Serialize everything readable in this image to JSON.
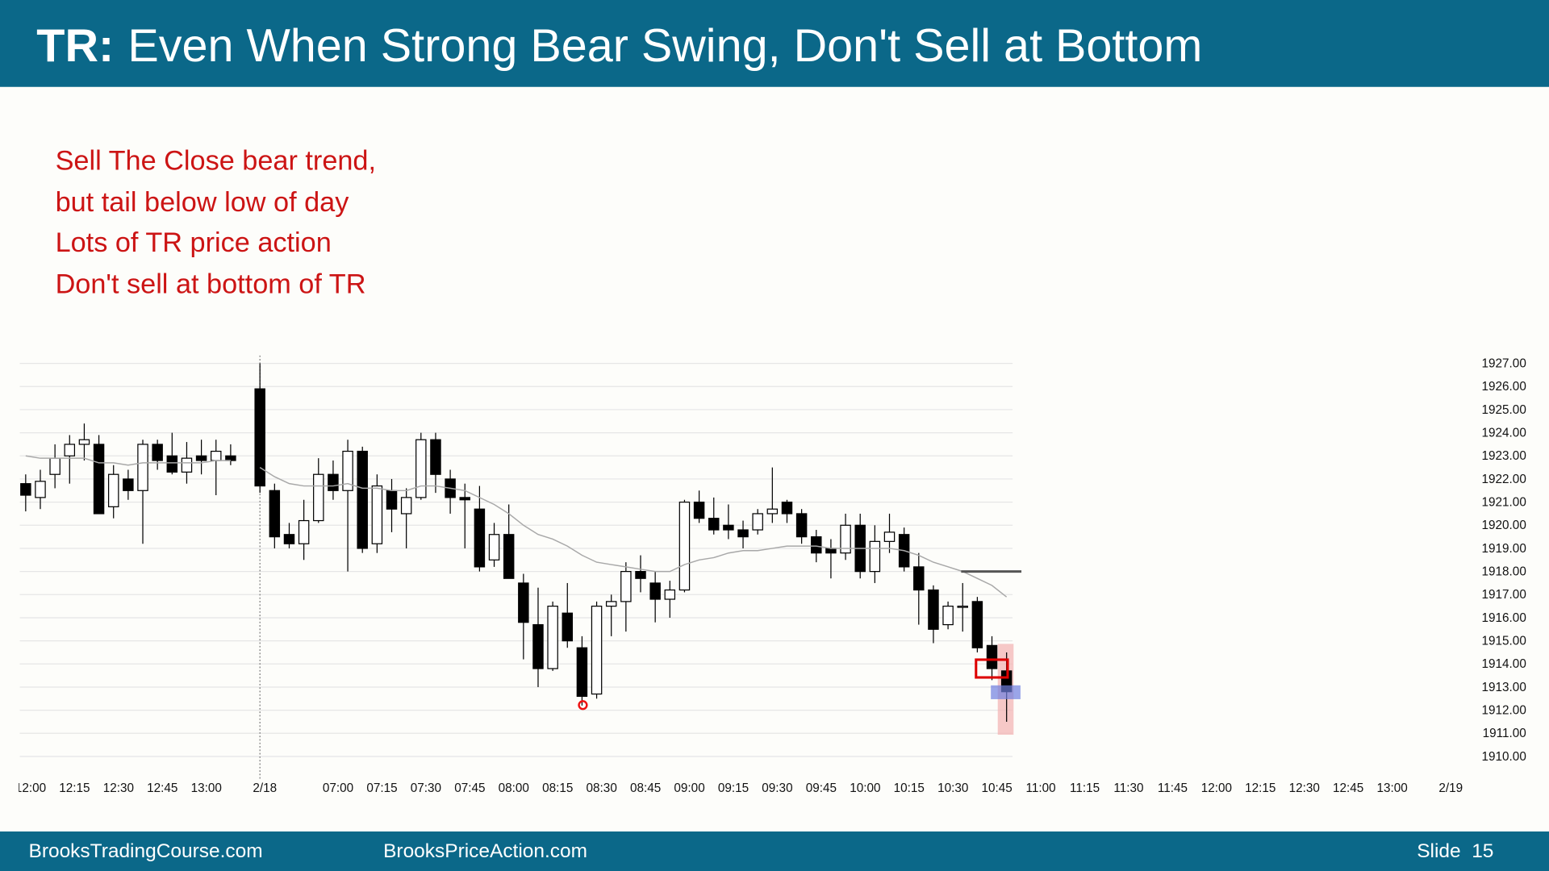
{
  "header": {
    "prefix": "TR:",
    "title": "Even When Strong Bear Swing, Don't Sell at Bottom"
  },
  "notes": [
    "Sell The Close bear trend,",
    "but tail below low of day",
    "Lots of TR price action",
    "Don't sell at bottom of TR"
  ],
  "footer": {
    "left": "BrooksTradingCourse.com",
    "middle": "BrooksPriceAction.com",
    "slide": "Slide  15"
  },
  "chart_data": {
    "type": "candlestick",
    "up_color": "#ffffff",
    "down_color": "#000000",
    "ema_color": "#a8a8a8",
    "hline_color": "#555555",
    "categories": [
      "12:00",
      null,
      null,
      "12:15",
      null,
      null,
      "12:30",
      null,
      null,
      "12:45",
      null,
      null,
      "13:00",
      null,
      null,
      null,
      "2/18",
      null,
      null,
      null,
      null,
      "07:00",
      null,
      null,
      "07:15",
      null,
      null,
      "07:30",
      null,
      null,
      "07:45",
      null,
      null,
      "08:00",
      null,
      null,
      "08:15",
      null,
      null,
      "08:30",
      null,
      null,
      "08:45",
      null,
      null,
      "09:00",
      null,
      null,
      "09:15",
      null,
      null,
      "09:30",
      null,
      null,
      "09:45",
      null,
      null,
      "10:00",
      null,
      null,
      "10:15",
      null,
      null,
      "10:30",
      null,
      null,
      "10:45",
      null,
      null,
      "11:00",
      null,
      null,
      "11:15",
      null,
      null,
      "11:30",
      null,
      null,
      "11:45",
      null,
      null,
      "12:00",
      null,
      null,
      "12:15",
      null,
      null,
      "12:30",
      null,
      null,
      "12:45",
      null,
      null,
      "13:00",
      null,
      null,
      null,
      "2/19"
    ],
    "open": [
      1921.8,
      1921.2,
      1922.2,
      1923.0,
      1923.5,
      1923.5,
      1920.8,
      1922.0,
      1921.5,
      1923.5,
      1923.0,
      1922.3,
      1923.0,
      1922.8,
      1923.0,
      null,
      1925.9,
      1921.5,
      1919.6,
      1919.2,
      1920.2,
      1922.2,
      1921.5,
      1923.2,
      1919.2,
      1921.5,
      1920.5,
      1921.2,
      1923.7,
      1922.0,
      1921.2,
      1920.7,
      1918.5,
      1919.6,
      1917.5,
      1915.7,
      1913.8,
      1916.2,
      1914.7,
      1912.7,
      1916.5,
      1916.7,
      1918.0,
      1917.5,
      1916.8,
      1917.2,
      1921.0,
      1920.3,
      1920.0,
      1919.8,
      1919.8,
      1920.5,
      1921.0,
      1920.5,
      1919.5,
      1919.0,
      1918.8,
      1920.0,
      1918.0,
      1919.3,
      1919.6,
      1918.2,
      1917.2,
      1915.7,
      1916.5,
      1916.7,
      1914.8,
      1913.7,
      null,
      null,
      null,
      null,
      null,
      null,
      null,
      null,
      null,
      null,
      null,
      null,
      null,
      null,
      null,
      null,
      null,
      null,
      null,
      null,
      null,
      null,
      null,
      null,
      null,
      null,
      null,
      null,
      null,
      null
    ],
    "high": [
      1922.2,
      1922.4,
      1923.5,
      1923.9,
      1924.4,
      1923.9,
      1922.6,
      1922.4,
      1923.7,
      1923.7,
      1924.0,
      1923.6,
      1923.7,
      1923.7,
      1923.5,
      null,
      1927.0,
      1921.8,
      1920.1,
      1921.1,
      1922.9,
      1922.8,
      1923.7,
      1923.4,
      1922.2,
      1922.0,
      1921.6,
      1924.0,
      1924.0,
      1922.4,
      1921.8,
      1921.7,
      1920.1,
      1920.9,
      1917.9,
      1917.3,
      1916.7,
      1917.5,
      1915.2,
      1916.7,
      1917.0,
      1918.4,
      1918.7,
      1918.0,
      1917.6,
      1921.1,
      1921.5,
      1921.2,
      1920.9,
      1920.2,
      1920.7,
      1922.5,
      1921.1,
      1920.7,
      1919.8,
      1919.4,
      1920.5,
      1920.5,
      1920.0,
      1920.5,
      1919.9,
      1918.8,
      1917.4,
      1916.7,
      1917.5,
      1916.9,
      1915.2,
      1914.5,
      null,
      null,
      null,
      null,
      null,
      null,
      null,
      null,
      null,
      null,
      null,
      null,
      null,
      null,
      null,
      null,
      null,
      null,
      null,
      null,
      null,
      null,
      null,
      null,
      null,
      null,
      null,
      null,
      null,
      null
    ],
    "low": [
      1920.6,
      1920.7,
      1921.6,
      1921.8,
      1922.8,
      1920.5,
      1920.3,
      1921.1,
      1919.2,
      1922.4,
      1922.2,
      1921.8,
      1922.2,
      1921.3,
      1922.6,
      null,
      1921.4,
      1919.0,
      1919.0,
      1918.5,
      1920.1,
      1921.1,
      1918.0,
      1918.8,
      1918.8,
      1919.7,
      1919.0,
      1921.1,
      1921.4,
      1920.5,
      1919.0,
      1918.0,
      1918.2,
      1917.7,
      1914.2,
      1913.0,
      1913.7,
      1914.7,
      1912.2,
      1912.5,
      1915.2,
      1915.4,
      1917.1,
      1915.8,
      1916.0,
      1917.1,
      1920.1,
      1919.6,
      1919.4,
      1919.0,
      1919.6,
      1920.1,
      1920.1,
      1919.2,
      1918.4,
      1917.7,
      1918.5,
      1917.7,
      1917.5,
      1918.8,
      1918.0,
      1915.7,
      1914.9,
      1915.5,
      1915.4,
      1914.5,
      1913.3,
      1911.5,
      null,
      null,
      null,
      null,
      null,
      null,
      null,
      null,
      null,
      null,
      null,
      null,
      null,
      null,
      null,
      null,
      null,
      null,
      null,
      null,
      null,
      null,
      null,
      null,
      null,
      null,
      null,
      null,
      null,
      null
    ],
    "close": [
      1921.3,
      1921.9,
      1922.9,
      1923.5,
      1923.7,
      1920.5,
      1922.2,
      1921.5,
      1923.5,
      1922.8,
      1922.3,
      1922.9,
      1922.8,
      1923.2,
      1922.8,
      null,
      1921.7,
      1919.5,
      1919.2,
      1920.2,
      1922.2,
      1921.5,
      1923.2,
      1919.0,
      1921.7,
      1920.7,
      1921.2,
      1923.7,
      1922.2,
      1921.2,
      1921.1,
      1918.2,
      1919.6,
      1917.7,
      1915.8,
      1913.8,
      1916.5,
      1915.0,
      1912.6,
      1916.5,
      1916.7,
      1918.0,
      1917.7,
      1916.8,
      1917.2,
      1921.0,
      1920.3,
      1919.8,
      1919.8,
      1919.5,
      1920.5,
      1920.7,
      1920.5,
      1919.5,
      1918.8,
      1918.8,
      1920.0,
      1918.0,
      1919.3,
      1919.7,
      1918.2,
      1917.2,
      1915.5,
      1916.5,
      1916.5,
      1914.7,
      1913.8,
      1912.8,
      null,
      null,
      null,
      null,
      null,
      null,
      null,
      null,
      null,
      null,
      null,
      null,
      null,
      null,
      null,
      null,
      null,
      null,
      null,
      null,
      null,
      null,
      null,
      null,
      null,
      null,
      null,
      null,
      null,
      null
    ],
    "ema": [
      1923.0,
      1922.9,
      1922.9,
      1922.9,
      1922.9,
      1922.7,
      1922.7,
      1922.6,
      1922.7,
      1922.7,
      1922.7,
      1922.7,
      1922.7,
      1922.8,
      1922.8,
      null,
      1922.5,
      1922.1,
      1921.8,
      1921.7,
      1921.7,
      1921.7,
      1921.8,
      1921.6,
      1921.6,
      1921.5,
      1921.5,
      1921.7,
      1921.7,
      1921.6,
      1921.5,
      1921.2,
      1920.9,
      1920.5,
      1920.0,
      1919.6,
      1919.4,
      1919.1,
      1918.7,
      1918.4,
      1918.3,
      1918.2,
      1918.1,
      1918.0,
      1918.0,
      1918.3,
      1918.5,
      1918.6,
      1918.8,
      1918.9,
      1918.9,
      1919.0,
      1919.1,
      1919.1,
      1919.1,
      1919.0,
      1919.0,
      1919.0,
      1919.0,
      1919.0,
      1918.9,
      1918.7,
      1918.4,
      1918.2,
      1918.0,
      1917.7,
      1917.4,
      1916.9,
      null,
      null,
      null,
      null,
      null,
      null,
      null,
      null,
      null,
      null,
      null,
      null,
      null,
      null,
      null,
      null,
      null,
      null,
      null,
      null,
      null,
      null,
      null,
      null,
      null,
      null,
      null,
      null,
      null,
      null
    ],
    "hline": 1918,
    "ylim": [
      1910,
      1927
    ],
    "yticks": [
      {
        "value": 1910,
        "label": "1910.00"
      },
      {
        "value": 1911,
        "label": "1911.00"
      },
      {
        "value": 1912,
        "label": "1912.00"
      },
      {
        "value": 1913,
        "label": "1913.00"
      },
      {
        "value": 1914,
        "label": "1914.00"
      },
      {
        "value": 1915,
        "label": "1915.00"
      },
      {
        "value": 1916,
        "label": "1916.00"
      },
      {
        "value": 1917,
        "label": "1917.00"
      },
      {
        "value": 1918,
        "label": "1918.00"
      },
      {
        "value": 1919,
        "label": "1919.00"
      },
      {
        "value": 1920,
        "label": "1920.00"
      },
      {
        "value": 1921,
        "label": "1921.00"
      },
      {
        "value": 1922,
        "label": "1922.00"
      },
      {
        "value": 1923,
        "label": "1923.00"
      },
      {
        "value": 1924,
        "label": "1924.00"
      },
      {
        "value": 1925,
        "label": "1925.00"
      },
      {
        "value": 1926,
        "label": "1926.00"
      },
      {
        "value": 1927,
        "label": "1927.00"
      }
    ],
    "grid": true
  }
}
